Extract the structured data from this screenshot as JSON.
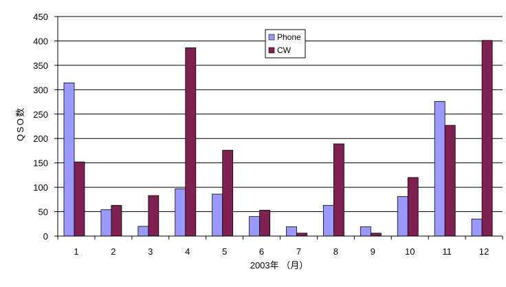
{
  "chart_data": {
    "type": "bar",
    "title": "",
    "xlabel": "2003年 （月）",
    "ylabel": "QSO数",
    "ylim": [
      0,
      450
    ],
    "yticks": [
      0,
      50,
      100,
      150,
      200,
      250,
      300,
      350,
      400,
      450
    ],
    "categories": [
      "1",
      "2",
      "3",
      "4",
      "5",
      "6",
      "7",
      "8",
      "9",
      "10",
      "11",
      "12"
    ],
    "series": [
      {
        "name": "Phone",
        "color": "#9999ff",
        "values": [
          314,
          54,
          20,
          97,
          86,
          40,
          19,
          63,
          19,
          81,
          276,
          35
        ]
      },
      {
        "name": "CW",
        "color": "#7f2052",
        "values": [
          152,
          63,
          83,
          386,
          176,
          53,
          6,
          189,
          6,
          120,
          227,
          401
        ]
      }
    ],
    "grid": true,
    "legend_position": "top-center"
  }
}
